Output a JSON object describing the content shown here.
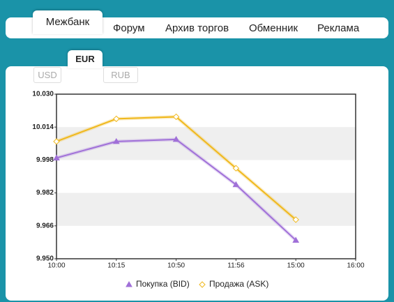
{
  "nav": {
    "tabs": [
      "Межбанк",
      "Форум",
      "Архив торгов",
      "Обменник",
      "Реклама"
    ]
  },
  "currency_tabs": [
    "EUR",
    "USD",
    "RUB"
  ],
  "chart_data": {
    "type": "line",
    "categories": [
      "10:00",
      "10:15",
      "10:50",
      "11:56",
      "15:00",
      "16:00"
    ],
    "series": [
      {
        "name": "Покупка (BID)",
        "color": "#a070d8",
        "marker": "triangle",
        "values": [
          9.999,
          10.007,
          10.008,
          9.986,
          9.959,
          null
        ]
      },
      {
        "name": "Продажа (ASK)",
        "color": "#f0b81c",
        "marker": "diamond",
        "values": [
          10.007,
          10.018,
          10.019,
          9.994,
          9.969,
          null
        ]
      }
    ],
    "ylim": [
      9.95,
      10.03
    ],
    "yticks": [
      {
        "value": 9.95,
        "label": "9.950"
      },
      9.966,
      9.982,
      9.998,
      10.014,
      {
        "value": 10.03,
        "label": "10.030"
      }
    ],
    "grid": "bands",
    "legend": "bottom"
  }
}
